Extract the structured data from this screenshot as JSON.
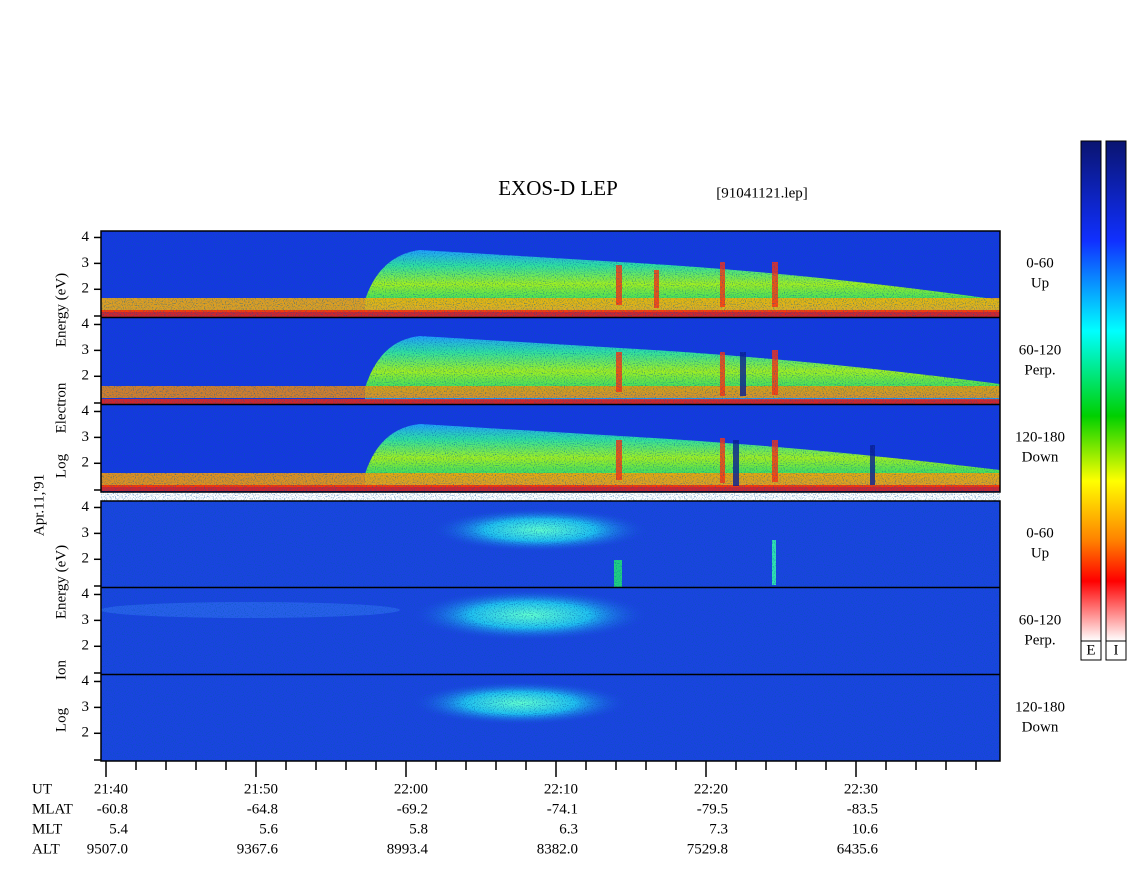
{
  "title": "EXOS-D LEP",
  "file": "[91041121.lep]",
  "date": "Apr.11,'91",
  "electron_label": [
    "Log",
    "Electron",
    "Energy (eV)"
  ],
  "ion_label": [
    "Log",
    "Ion",
    "Energy (eV)"
  ],
  "energy_axis": {
    "ylim": [
      0.93,
      4.25
    ],
    "yticks": [
      2,
      3,
      4
    ]
  },
  "panels": [
    {
      "angle": "0-60",
      "direction": "Up"
    },
    {
      "angle": "60-120",
      "direction": "Perp."
    },
    {
      "angle": "120-180",
      "direction": "Down"
    },
    {
      "angle": "0-60",
      "direction": "Up"
    },
    {
      "angle": "60-120",
      "direction": "Perp."
    },
    {
      "angle": "120-180",
      "direction": "Down"
    }
  ],
  "colorbar": [
    "E",
    "I"
  ],
  "orbit": {
    "rows": [
      {
        "label": "UT",
        "values": [
          "21:40",
          "21:50",
          "22:00",
          "22:10",
          "22:20",
          "22:30"
        ]
      },
      {
        "label": "MLAT",
        "values": [
          "-60.8",
          "-64.8",
          "-69.2",
          "-74.1",
          "-79.5",
          "-83.5"
        ]
      },
      {
        "label": "MLT",
        "values": [
          "5.4",
          "5.6",
          "5.8",
          "6.3",
          "7.3",
          "10.6"
        ]
      },
      {
        "label": "ALT",
        "values": [
          "9507.0",
          "9367.6",
          "8993.4",
          "8382.0",
          "7529.8",
          "6435.6"
        ]
      }
    ]
  }
}
